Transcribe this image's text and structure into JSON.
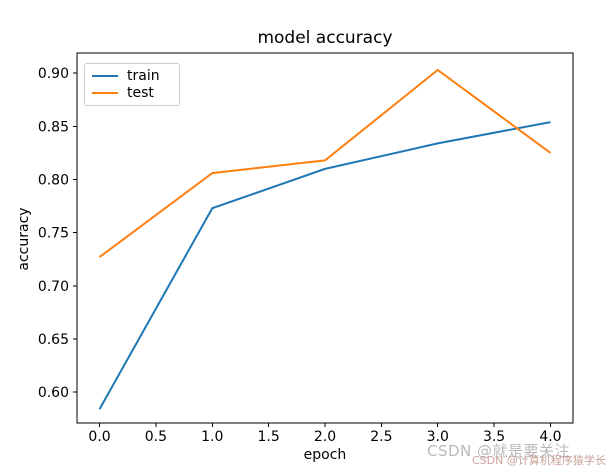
{
  "figure": {
    "title": "model accuracy",
    "xlabel": "epoch",
    "ylabel": "accuracy"
  },
  "chart_data": {
    "type": "line",
    "title": "model accuracy",
    "xlabel": "epoch",
    "ylabel": "accuracy",
    "x": [
      0,
      1,
      2,
      3,
      4
    ],
    "series": [
      {
        "name": "train",
        "color": "#1f77b4",
        "values": [
          0.584,
          0.773,
          0.81,
          0.834,
          0.854
        ]
      },
      {
        "name": "test",
        "color": "#ff7f0e",
        "values": [
          0.727,
          0.806,
          0.818,
          0.903,
          0.825
        ]
      }
    ],
    "xtick_labels": [
      "0.0",
      "0.5",
      "1.0",
      "1.5",
      "2.0",
      "2.5",
      "3.0",
      "3.5",
      "4.0"
    ],
    "ytick_labels": [
      "0.60",
      "0.65",
      "0.70",
      "0.75",
      "0.80",
      "0.85",
      "0.90"
    ],
    "xlim": [
      -0.2,
      4.2
    ],
    "ylim": [
      0.571,
      0.919
    ],
    "grid": false,
    "legend_position": "upper left",
    "spine_color": "#000000",
    "tick_label_color": "#000000"
  },
  "watermark": {
    "primary": "CSDN @就是要关注",
    "primary_color": "#b9b9b9",
    "secondary": "CSDN @计算机程序猿学长",
    "secondary_color": "#c9a29b"
  }
}
